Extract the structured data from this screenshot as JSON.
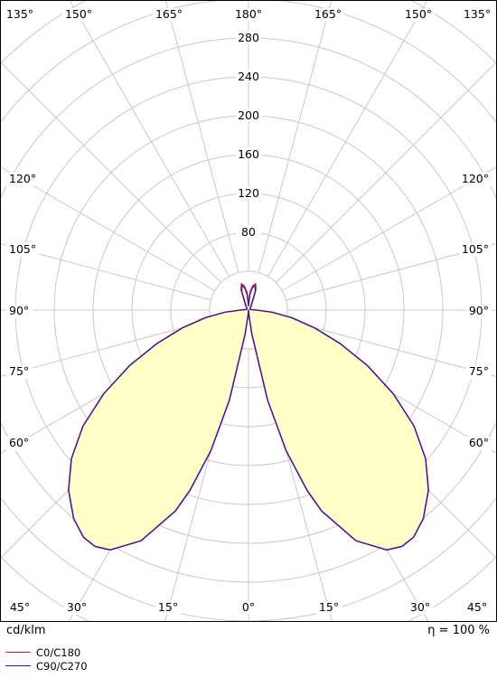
{
  "chart_data": {
    "type": "polar-luminous-intensity",
    "radial_ticks": [
      80,
      120,
      160,
      200,
      240,
      280
    ],
    "radial_max": 280,
    "radial_step": 40,
    "angle_step": 15,
    "angle_labels": {
      "top": [
        "135°",
        "150°",
        "165°",
        "180°",
        "165°",
        "150°",
        "135°"
      ],
      "left": [
        "120°",
        "105°",
        "90°",
        "75°",
        "60°"
      ],
      "right": [
        "120°",
        "105°",
        "90°",
        "75°",
        "60°"
      ],
      "bottom": [
        "45°",
        "30°",
        "15°",
        "0°",
        "15°",
        "30°",
        "45°"
      ]
    },
    "series": [
      {
        "name": "C0/C180",
        "color": "#e0102a",
        "fill": "#ffffc8",
        "points": [
          [
            0,
            0
          ],
          [
            4,
            4
          ],
          [
            8,
            25
          ],
          [
            12,
            95
          ],
          [
            15,
            150
          ],
          [
            18,
            195
          ],
          [
            20,
            220
          ],
          [
            25,
            262
          ],
          [
            30,
            285
          ],
          [
            33,
            290
          ],
          [
            36,
            289
          ],
          [
            40,
            280
          ],
          [
            45,
            262
          ],
          [
            50,
            238
          ],
          [
            55,
            208
          ],
          [
            60,
            172
          ],
          [
            65,
            135
          ],
          [
            70,
            100
          ],
          [
            75,
            70
          ],
          [
            80,
            45
          ],
          [
            85,
            24
          ],
          [
            90,
            8
          ],
          [
            95,
            5
          ],
          [
            100,
            3
          ],
          [
            110,
            2
          ],
          [
            130,
            2
          ],
          [
            150,
            6
          ],
          [
            160,
            22
          ],
          [
            165,
            28
          ],
          [
            170,
            25
          ],
          [
            175,
            18
          ],
          [
            180,
            5
          ]
        ]
      },
      {
        "name": "C90/C270",
        "color": "#1a1ad0",
        "points": [
          [
            0,
            0
          ],
          [
            4,
            4
          ],
          [
            8,
            25
          ],
          [
            12,
            95
          ],
          [
            15,
            150
          ],
          [
            18,
            195
          ],
          [
            20,
            220
          ],
          [
            25,
            262
          ],
          [
            30,
            285
          ],
          [
            33,
            290
          ],
          [
            36,
            289
          ],
          [
            40,
            280
          ],
          [
            45,
            262
          ],
          [
            50,
            238
          ],
          [
            55,
            208
          ],
          [
            60,
            172
          ],
          [
            65,
            135
          ],
          [
            70,
            100
          ],
          [
            75,
            70
          ],
          [
            80,
            45
          ],
          [
            85,
            24
          ],
          [
            90,
            8
          ],
          [
            95,
            5
          ],
          [
            100,
            3
          ],
          [
            110,
            2
          ],
          [
            130,
            2
          ],
          [
            150,
            5
          ],
          [
            160,
            20
          ],
          [
            165,
            26
          ],
          [
            170,
            23
          ],
          [
            175,
            16
          ],
          [
            180,
            4
          ]
        ]
      }
    ]
  },
  "footer": {
    "unit_label": "cd/klm",
    "efficiency_label": "η = 100 %"
  },
  "legend": {
    "items": [
      {
        "label": "C0/C180",
        "color": "#e0102a"
      },
      {
        "label": "C90/C270",
        "color": "#1a1ad0"
      }
    ]
  }
}
